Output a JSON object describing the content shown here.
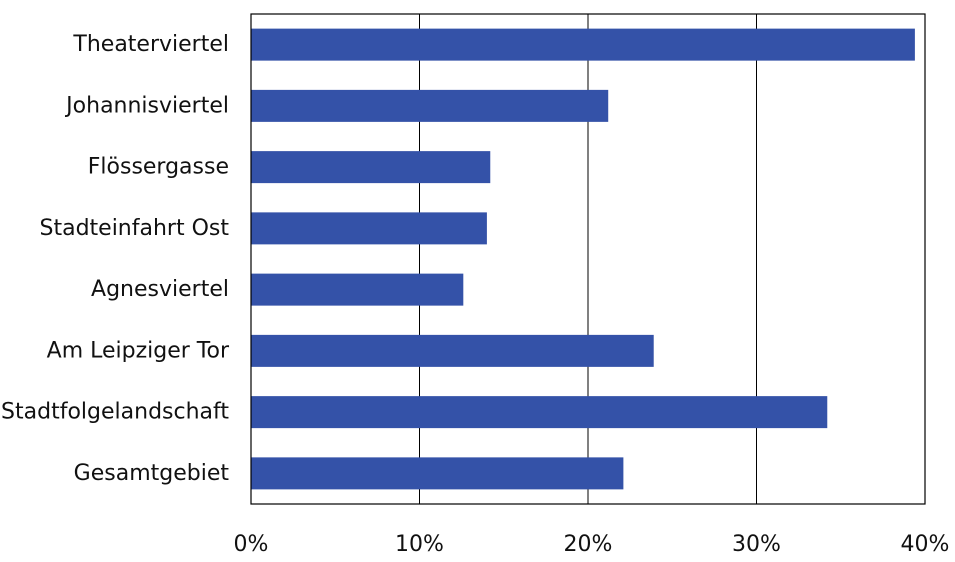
{
  "chart_data": {
    "type": "bar",
    "orientation": "horizontal",
    "categories": [
      "Theaterviertel",
      "Johannisviertel",
      "Flössergasse",
      "Stadteinfahrt Ost",
      "Agnesviertel",
      "Am Leipziger Tor",
      "Stadtfolgelandschaft",
      "Gesamtgebiet"
    ],
    "values": [
      39.4,
      21.2,
      14.2,
      14.0,
      12.6,
      23.9,
      34.2,
      22.1
    ],
    "xlim": [
      0,
      40
    ],
    "x_ticks": [
      0,
      10,
      20,
      30,
      40
    ],
    "x_tick_labels": [
      "0%",
      "10%",
      "20%",
      "30%",
      "40%"
    ],
    "grid": "vertical",
    "legend": "none",
    "title": "",
    "xlabel": "",
    "ylabel": "",
    "bar_color": "#3452A8"
  }
}
